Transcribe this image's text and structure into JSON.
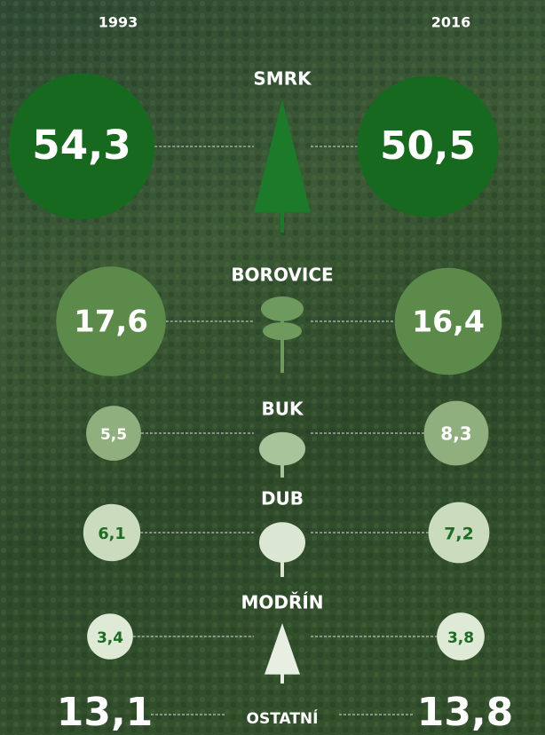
{
  "chart_data": {
    "type": "bubble",
    "categories": [
      "SMRK",
      "BOROVICE",
      "BUK",
      "DUB",
      "MODŘÍN",
      "OSTATNÍ"
    ],
    "colors": [
      "#17691f",
      "#5b8a4b",
      "#8fb07e",
      "#cadcbd",
      "#dfeAd6",
      null
    ],
    "label_colors": [
      "#ffffff",
      "#ffffff",
      "#ffffff",
      "#1d6b25",
      "#1d6b25",
      "#ffffff"
    ],
    "series": [
      {
        "name": "1993",
        "values": [
          54.3,
          17.6,
          5.5,
          6.1,
          3.4,
          13.1
        ],
        "value_labels": [
          "54,3",
          "17,6",
          "5,5",
          "6,1",
          "3,4",
          "13,1"
        ]
      },
      {
        "name": "2016",
        "values": [
          50.5,
          16.4,
          8.3,
          7.2,
          3.8,
          13.8
        ],
        "value_labels": [
          "50,5",
          "16,4",
          "8,3",
          "7,2",
          "3,8",
          "13,8"
        ]
      }
    ]
  }
}
